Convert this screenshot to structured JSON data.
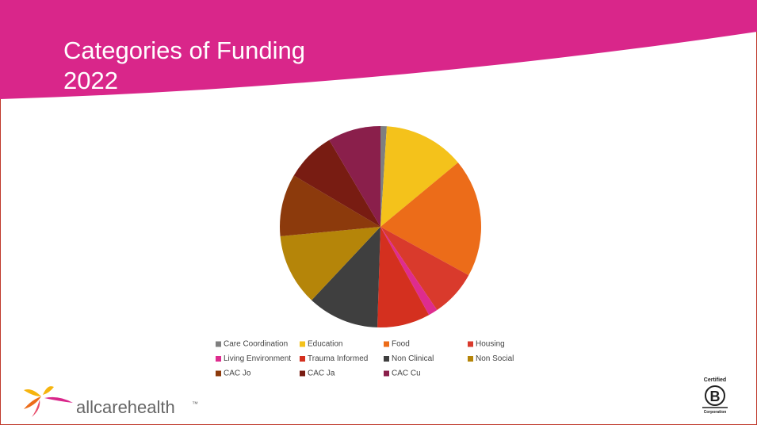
{
  "chart_data": {
    "type": "pie",
    "title": "Categories of Funding",
    "subtitle": "2022",
    "categories": [
      "Care Coordination",
      "Education",
      "Food",
      "Housing",
      "Living Environment",
      "Trauma Informed",
      "Non Clinical",
      "Non Social",
      "CAC Jo",
      "CAC Ja",
      "CAC Cu"
    ],
    "values": [
      1,
      13,
      19,
      7.5,
      1.5,
      8.5,
      11.5,
      11.5,
      10,
      8,
      8.5
    ],
    "colors": [
      "#7f7f7f",
      "#f4c21b",
      "#ec6c19",
      "#d93a2c",
      "#de2c8e",
      "#d4301f",
      "#3f3f3f",
      "#b58509",
      "#8c3a0c",
      "#781c12",
      "#8a1f4b"
    ]
  },
  "logo": {
    "brand": "allcarehealth",
    "trademark": "™"
  },
  "badge": {
    "top": "Certified",
    "letter": "B",
    "bottom": "Corporation"
  }
}
